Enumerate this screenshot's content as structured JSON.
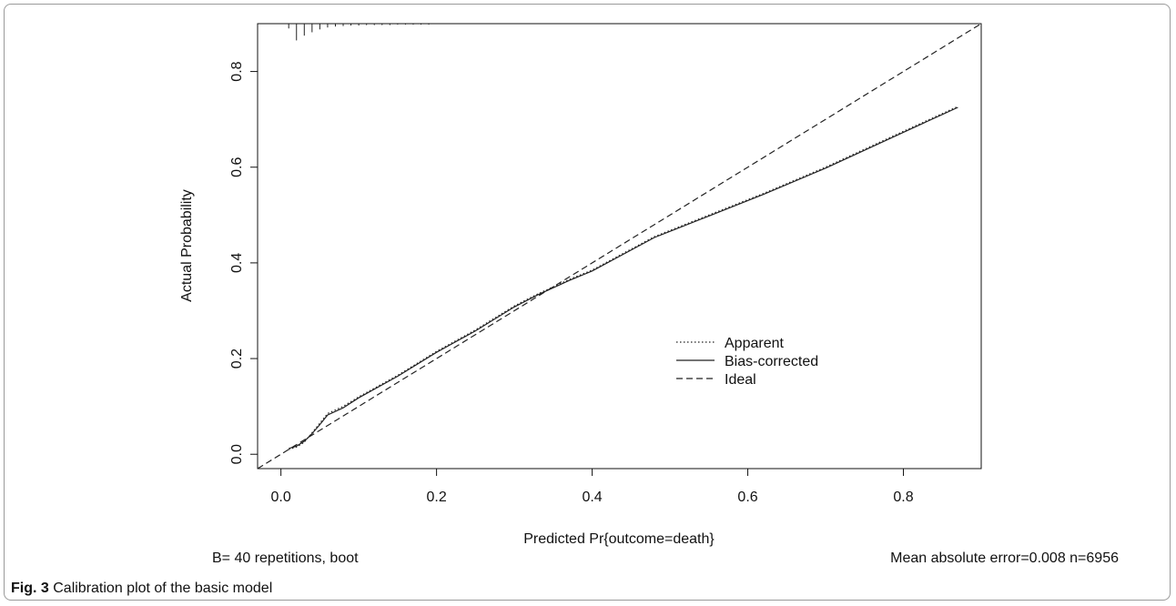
{
  "chart_data": {
    "type": "line",
    "xlabel": "Predicted Pr{outcome=death}",
    "ylabel": "Actual Probability",
    "xlim": [
      -0.03,
      0.9
    ],
    "ylim": [
      -0.03,
      0.9
    ],
    "x_ticks": [
      0.0,
      0.2,
      0.4,
      0.6,
      0.8
    ],
    "y_ticks": [
      0.0,
      0.2,
      0.4,
      0.6,
      0.8
    ],
    "x_tick_labels": [
      "0.0",
      "0.2",
      "0.4",
      "0.6",
      "0.8"
    ],
    "y_tick_labels": [
      "0.0",
      "0.2",
      "0.4",
      "0.6",
      "0.8"
    ],
    "grid": false,
    "legend_position": "center-right",
    "series": [
      {
        "name": "Apparent",
        "line_style": "dotted",
        "x": [
          0.01,
          0.02,
          0.03,
          0.04,
          0.05,
          0.06,
          0.08,
          0.1,
          0.15,
          0.2,
          0.25,
          0.3,
          0.33,
          0.37,
          0.4,
          0.48,
          0.55,
          0.62,
          0.7,
          0.8,
          0.87
        ],
        "y": [
          0.01,
          0.015,
          0.025,
          0.045,
          0.065,
          0.085,
          0.1,
          0.12,
          0.165,
          0.215,
          0.26,
          0.31,
          0.335,
          0.365,
          0.385,
          0.455,
          0.5,
          0.545,
          0.6,
          0.675,
          0.727
        ]
      },
      {
        "name": "Bias-corrected",
        "line_style": "solid",
        "x": [
          0.01,
          0.02,
          0.03,
          0.04,
          0.05,
          0.06,
          0.08,
          0.1,
          0.15,
          0.2,
          0.25,
          0.3,
          0.33,
          0.37,
          0.4,
          0.48,
          0.55,
          0.62,
          0.7,
          0.8,
          0.87
        ],
        "y": [
          0.012,
          0.017,
          0.027,
          0.043,
          0.062,
          0.082,
          0.097,
          0.118,
          0.163,
          0.213,
          0.258,
          0.308,
          0.333,
          0.363,
          0.383,
          0.453,
          0.498,
          0.543,
          0.598,
          0.673,
          0.725
        ]
      },
      {
        "name": "Ideal",
        "line_style": "dashed",
        "x": [
          -0.03,
          0.9
        ],
        "y": [
          -0.03,
          0.9
        ]
      }
    ],
    "rug_top": [
      0.01,
      0.02,
      0.03,
      0.04,
      0.05,
      0.06,
      0.07,
      0.08,
      0.09,
      0.1,
      0.11,
      0.12,
      0.13,
      0.14,
      0.15,
      0.16,
      0.17,
      0.18,
      0.19
    ],
    "rug_top_lengths": [
      0.01,
      0.035,
      0.025,
      0.018,
      0.012,
      0.008,
      0.006,
      0.005,
      0.004,
      0.004,
      0.003,
      0.003,
      0.003,
      0.003,
      0.002,
      0.002,
      0.002,
      0.002,
      0.002
    ]
  },
  "notes": {
    "bootstrap": "B= 40 repetitions, boot",
    "error": "Mean absolute error=0.008 n=6956"
  },
  "caption": {
    "label": "Fig. 3",
    "text": "Calibration plot of the basic model"
  }
}
